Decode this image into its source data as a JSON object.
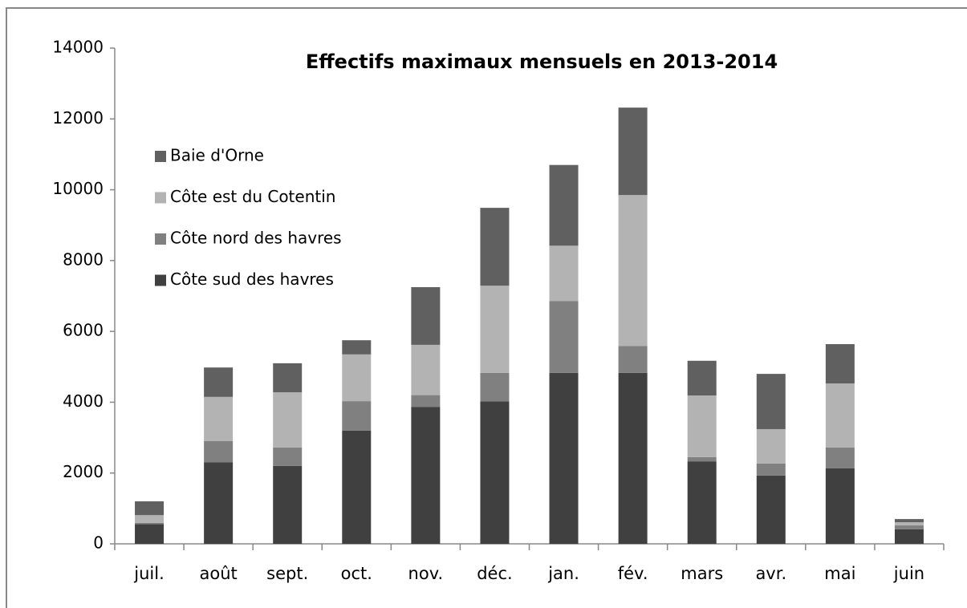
{
  "chart_data": {
    "type": "stacked_bar",
    "title": "Effectifs maximaux mensuels en 2013-2014",
    "categories": [
      "juil.",
      "août",
      "sept.",
      "oct.",
      "nov.",
      "déc.",
      "jan.",
      "fév.",
      "mars",
      "avr.",
      "mai",
      "juin"
    ],
    "series": [
      {
        "name": "Côte sud des havres",
        "color": "#404040",
        "values": [
          560,
          2300,
          2200,
          3200,
          3870,
          4020,
          4830,
          4830,
          2330,
          1930,
          2130,
          410
        ]
      },
      {
        "name": "Côte nord des havres",
        "color": "#808080",
        "values": [
          30,
          600,
          520,
          830,
          330,
          810,
          2030,
          760,
          120,
          340,
          590,
          110
        ]
      },
      {
        "name": "Côte est du Cotentin",
        "color": "#b3b3b3",
        "values": [
          220,
          1250,
          1560,
          1320,
          1420,
          2460,
          1560,
          4260,
          1740,
          970,
          1810,
          90
        ]
      },
      {
        "name": "Baie d'Orne",
        "color": "#606060",
        "values": [
          390,
          830,
          820,
          400,
          1630,
          2200,
          2280,
          2470,
          980,
          1560,
          1110,
          90
        ]
      }
    ],
    "ylim": [
      0,
      14000
    ],
    "yticks": [
      0,
      2000,
      4000,
      6000,
      8000,
      10000,
      12000,
      14000
    ],
    "grid": false,
    "legend": "left"
  }
}
